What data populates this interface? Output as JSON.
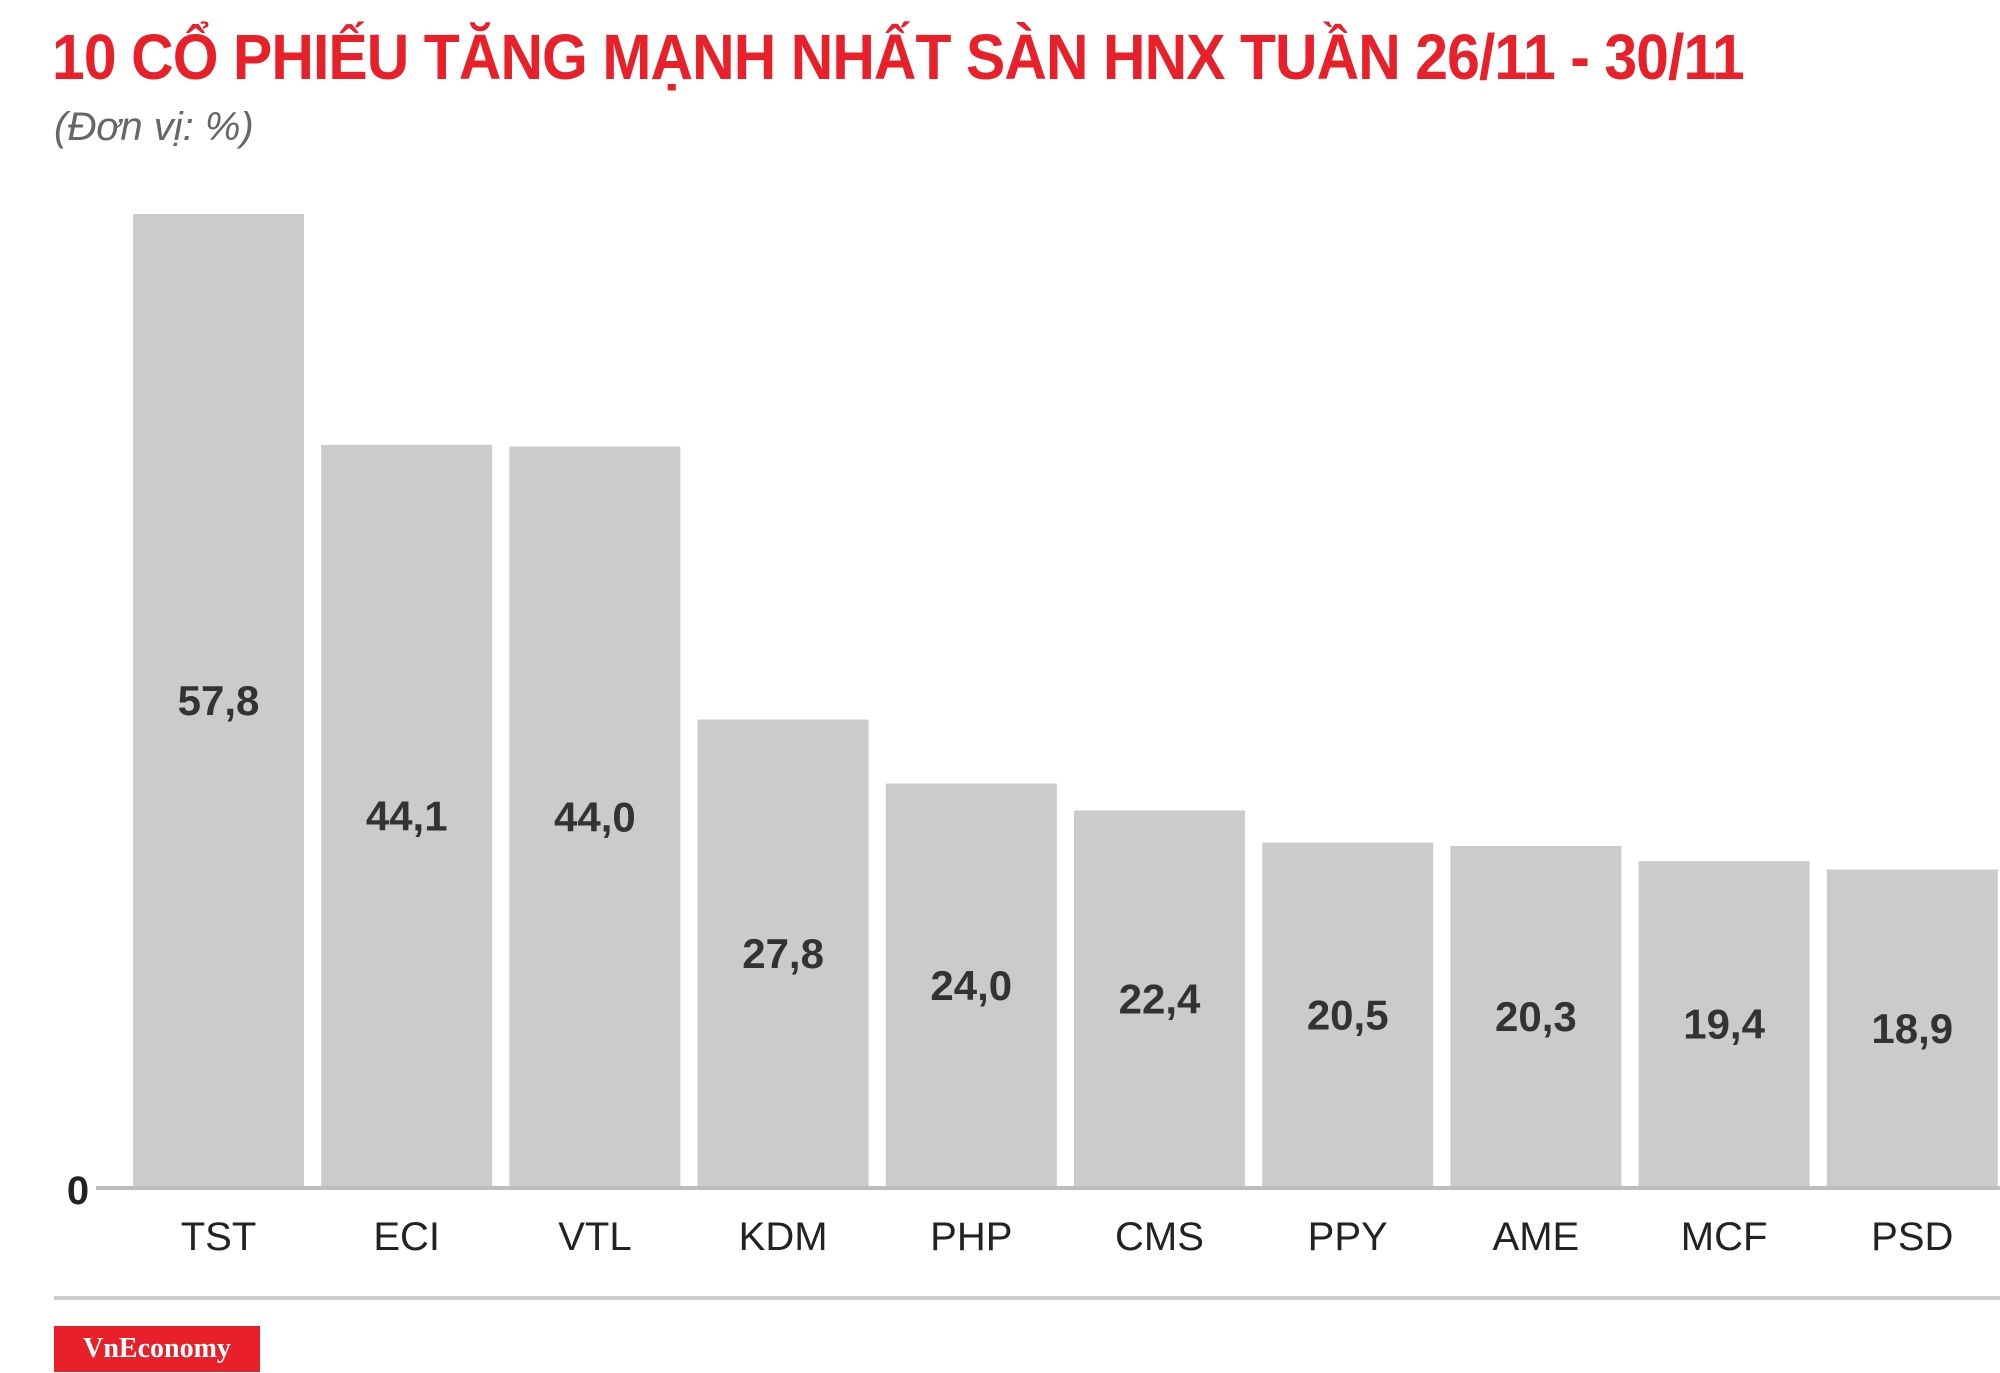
{
  "header": {
    "title": "10 CỔ PHIẾU TĂNG MẠNH NHẤT SÀN HNX TUẦN 26/11 - 30/11",
    "subtitle": "(Đơn vị: %)"
  },
  "footer": {
    "brand": "VnEconomy"
  },
  "colors": {
    "title": "#e8202a",
    "bar": "#cccbcc",
    "brand_bg": "#e8202a"
  },
  "chart_data": {
    "type": "bar",
    "title": "10 CỔ PHIẾU TĂNG MẠNH NHẤT SÀN HNX TUẦN 26/11 - 30/11",
    "subtitle": "(Đơn vị: %)",
    "categories": [
      "TST",
      "ECI",
      "VTL",
      "KDM",
      "PHP",
      "CMS",
      "PPY",
      "AME",
      "MCF",
      "PSD"
    ],
    "values": [
      57.8,
      44.1,
      44.0,
      27.8,
      24.0,
      22.4,
      20.5,
      20.3,
      19.4,
      18.9
    ],
    "value_labels": [
      "57,8",
      "44,1",
      "44,0",
      "27,8",
      "24,0",
      "22,4",
      "20,5",
      "20,3",
      "19,4",
      "18,9"
    ],
    "y_tick_labels": [
      "0"
    ],
    "ylim": [
      0,
      57.8
    ],
    "grid": false,
    "legend": "none"
  }
}
